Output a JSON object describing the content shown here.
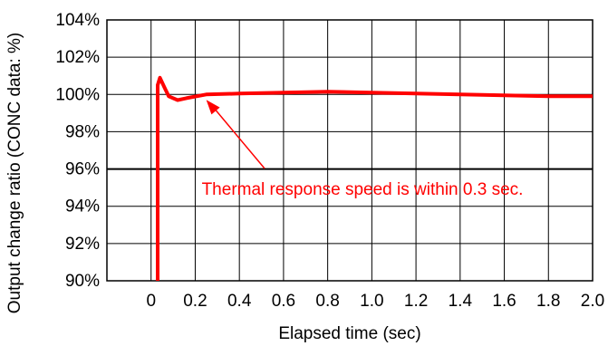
{
  "chart_data": {
    "type": "line",
    "xlabel": "Elapsed time (sec)",
    "ylabel": "Output change ratio (CONC data: %)",
    "xlim": [
      -0.2,
      2.0
    ],
    "ylim": [
      90,
      104
    ],
    "x_ticks": [
      0,
      0.2,
      0.4,
      0.6,
      0.8,
      1.0,
      1.2,
      1.4,
      1.6,
      1.8,
      2.0
    ],
    "x_tick_labels": [
      "0",
      "0.2",
      "0.4",
      "0.6",
      "0.8",
      "1.0",
      "1.2",
      "1.4",
      "1.6",
      "1.8",
      "2.0"
    ],
    "y_ticks": [
      90,
      92,
      94,
      96,
      98,
      100,
      102,
      104
    ],
    "y_tick_labels": [
      "90%",
      "92%",
      "94%",
      "96%",
      "98%",
      "100%",
      "102%",
      "104%"
    ],
    "grid": true,
    "series_color": "#ff0000",
    "series": [
      {
        "x": [
          0.03,
          0.03,
          0.04,
          0.06,
          0.08,
          0.12,
          0.16,
          0.25,
          0.4,
          0.6,
          0.8,
          1.0,
          1.2,
          1.4,
          1.6,
          1.8,
          2.0
        ],
        "y": [
          90,
          100.5,
          100.9,
          100.4,
          99.9,
          99.7,
          99.8,
          100.0,
          100.05,
          100.1,
          100.15,
          100.1,
          100.05,
          100.0,
          99.95,
          99.9,
          99.9
        ]
      }
    ],
    "annotation": {
      "text": "Thermal response speed is within 0.3 sec.",
      "arrow_target": {
        "x": 0.25,
        "y": 100.0
      }
    }
  }
}
